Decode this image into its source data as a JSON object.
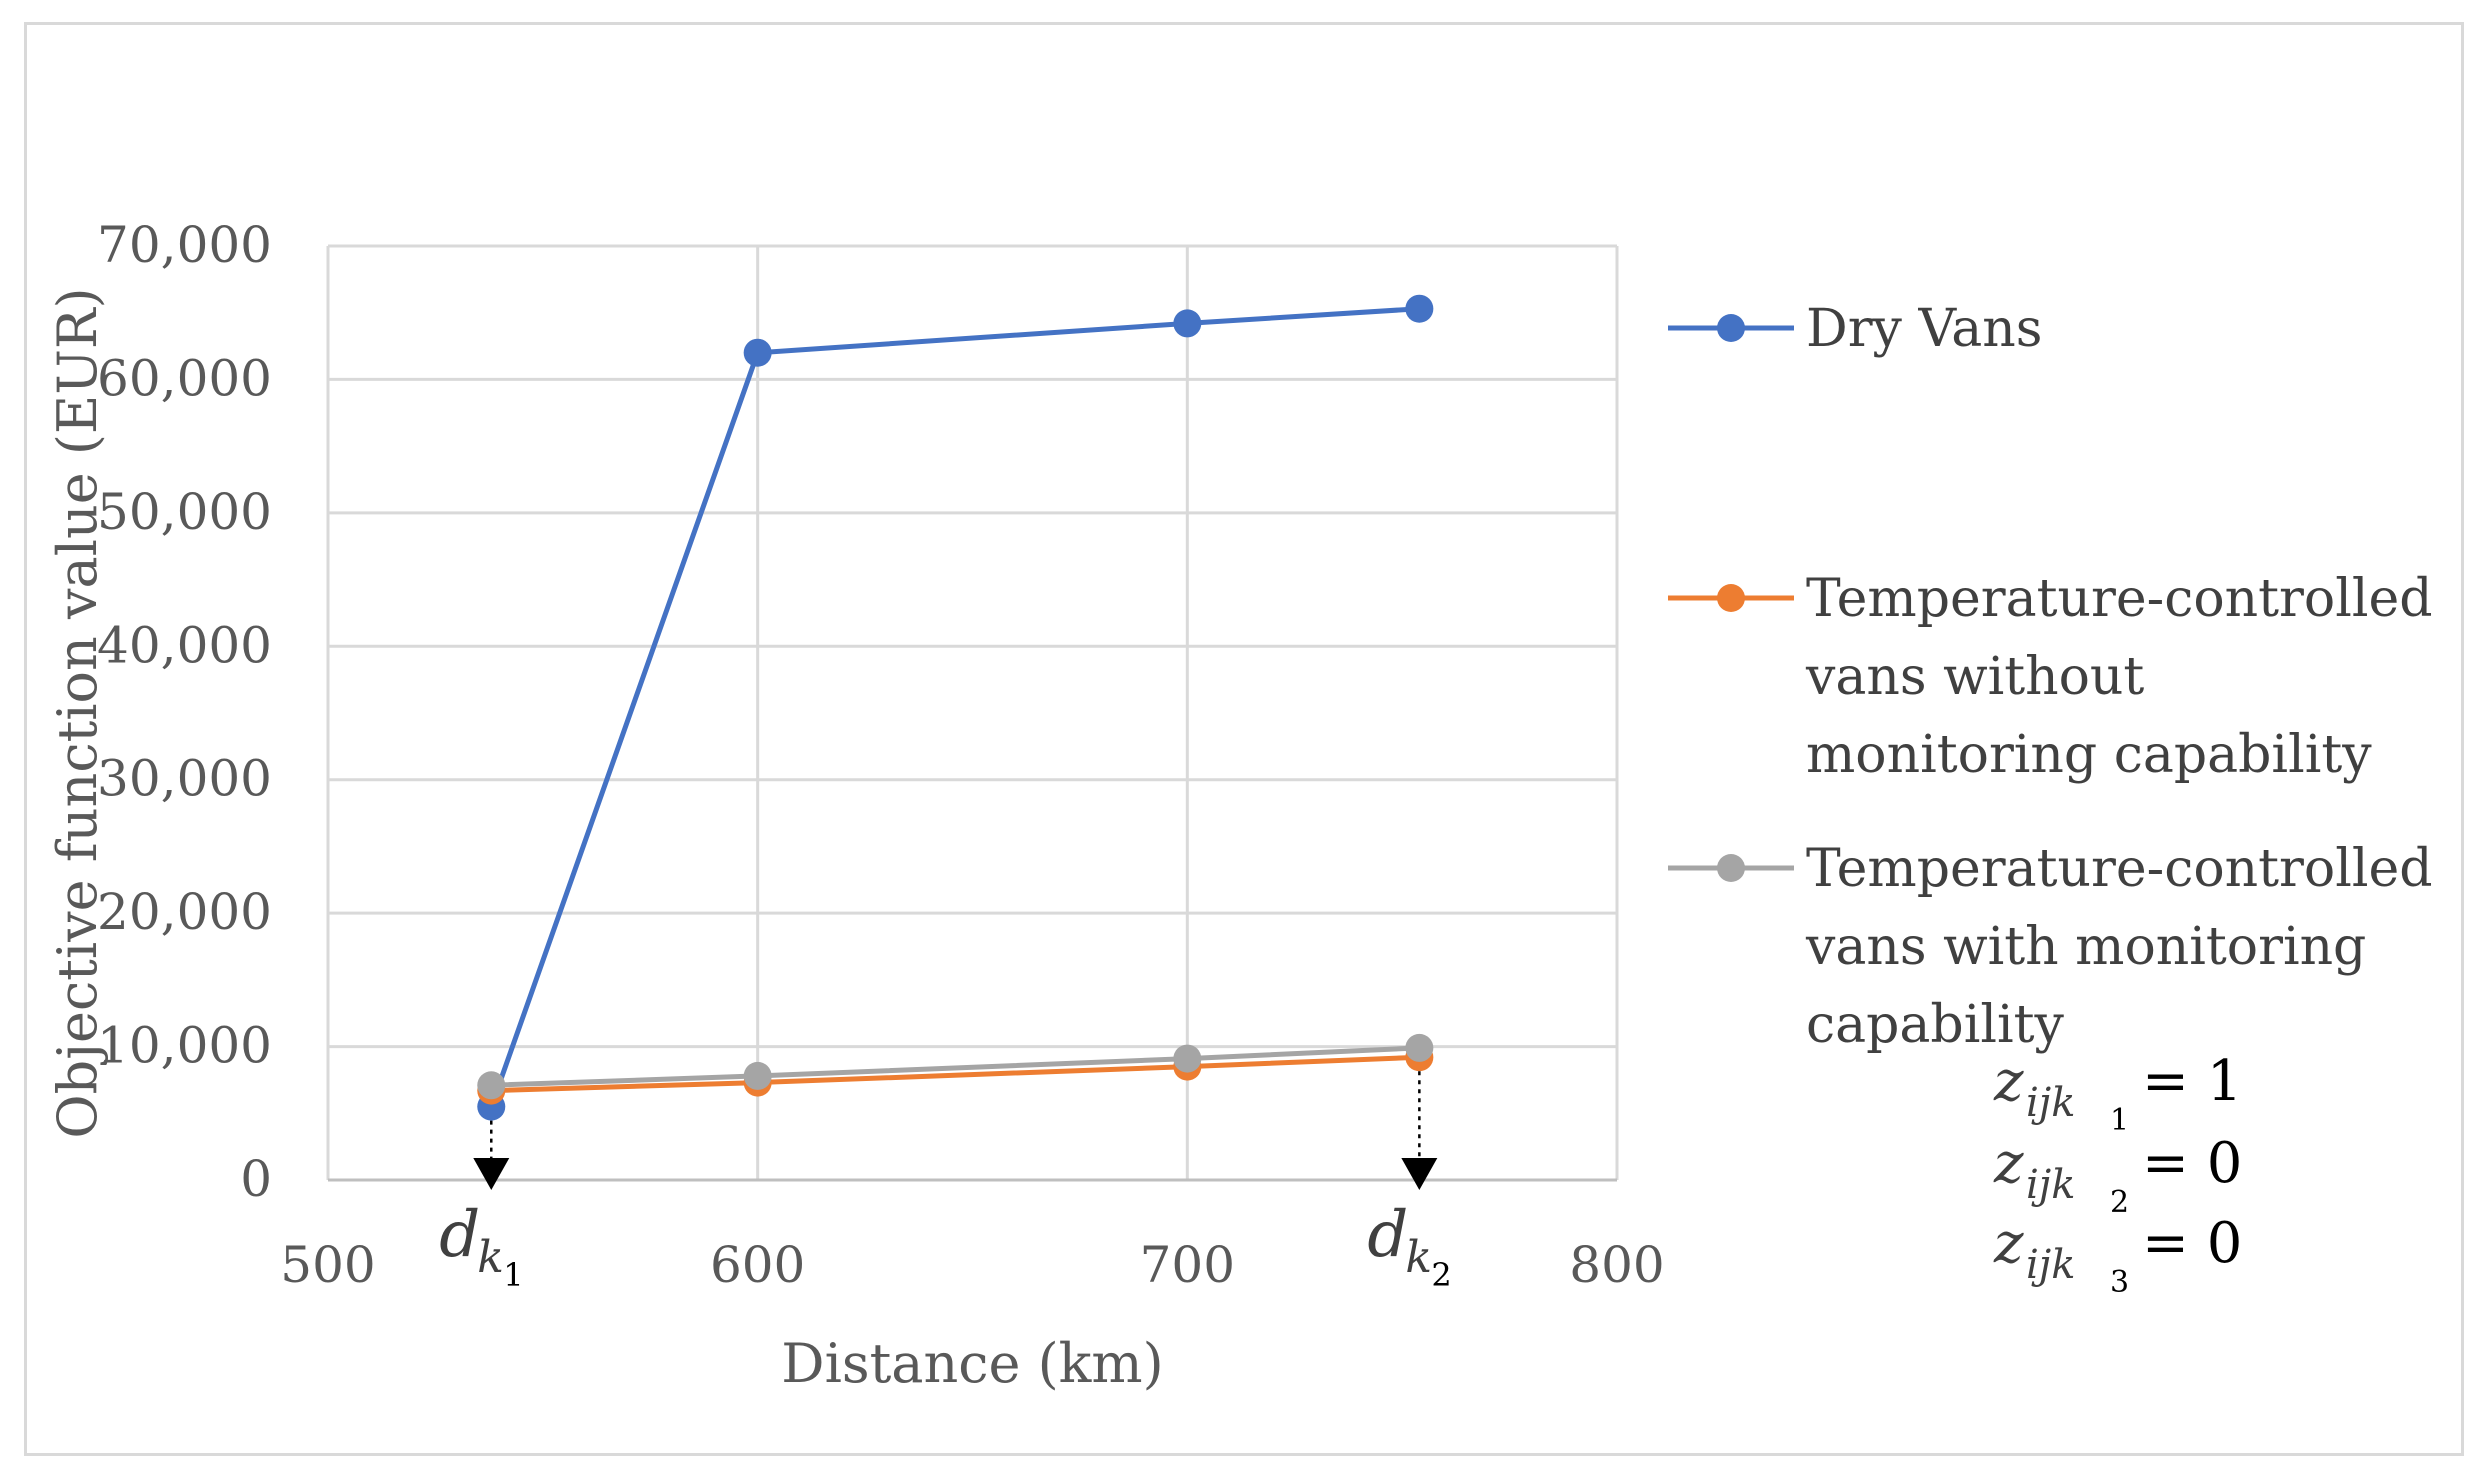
{
  "chart_data": {
    "type": "line",
    "title": "",
    "xlabel": "Distance (km)",
    "ylabel": "Objective function value (EUR)",
    "xlim": [
      500,
      800
    ],
    "ylim": [
      0,
      70000
    ],
    "x_ticks": [
      500,
      600,
      700,
      800
    ],
    "y_ticks": [
      0,
      10000,
      20000,
      30000,
      40000,
      50000,
      60000,
      70000
    ],
    "x_tick_labels": [
      "500",
      "600",
      "700",
      "800"
    ],
    "y_tick_labels": [
      "0",
      "10,000",
      "20,000",
      "30,000",
      "40,000",
      "50,000",
      "60,000",
      "70,000"
    ],
    "grid": true,
    "legend_position": "right",
    "series": [
      {
        "name": "Dry Vans",
        "legend_lines": [
          "Dry Vans"
        ],
        "color": "#4472c4",
        "x": [
          538,
          600,
          700,
          754
        ],
        "values": [
          5500,
          62000,
          64200,
          65300
        ]
      },
      {
        "name": "Temperature-controlled vans without monitoring capability",
        "legend_lines": [
          "Temperature-controlled",
          "vans without",
          "monitoring capability"
        ],
        "color": "#ed7d31",
        "x": [
          538,
          600,
          700,
          754
        ],
        "values": [
          6700,
          7300,
          8500,
          9200
        ]
      },
      {
        "name": "Temperature-controlled vans with monitoring capability",
        "legend_lines": [
          "Temperature-controlled",
          "vans with monitoring",
          "capability"
        ],
        "color": "#a5a5a5",
        "x": [
          538,
          600,
          700,
          754
        ],
        "values": [
          7100,
          7800,
          9100,
          9900
        ]
      }
    ],
    "annotations": {
      "markers": [
        {
          "label": "d",
          "subscript": "k",
          "subsubscript": "1",
          "x": 538
        },
        {
          "label": "d",
          "subscript": "k",
          "subsubscript": "2",
          "x": 754
        }
      ],
      "conditions": [
        {
          "var": "z",
          "subscript": "ijk",
          "subsubscript": "1",
          "rhs": "= 1"
        },
        {
          "var": "z",
          "subscript": "ijk",
          "subsubscript": "2",
          "rhs": "= 0"
        },
        {
          "var": "z",
          "subscript": "ijk",
          "subsubscript": "3",
          "rhs": "= 0"
        }
      ]
    }
  }
}
